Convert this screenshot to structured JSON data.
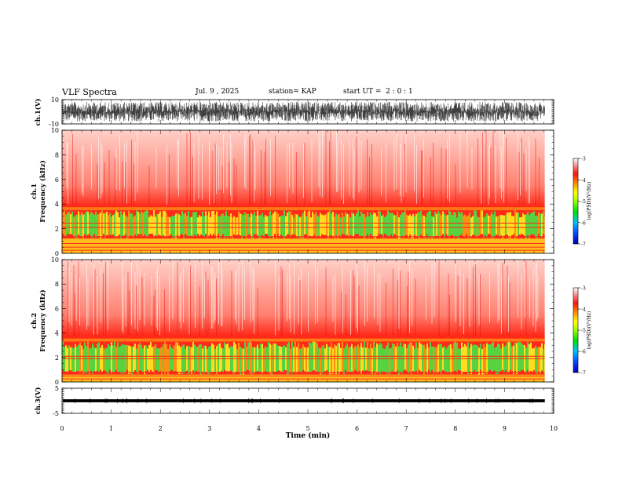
{
  "header": {
    "title": "VLF Spectra",
    "date": "Jul. 9 , 2025",
    "station": "station= KAP",
    "start_ut": "start UT =  2 : 0 : 1"
  },
  "colors": {
    "spec_red": "#ff2a1a",
    "spec_orange": "#ff9a14",
    "spec_yellow": "#ffee22",
    "spec_green": "#44e644",
    "colorbar_stops": [
      "#0000b0",
      "#0044ff",
      "#00c0ff",
      "#00e000",
      "#9aff00",
      "#ffff00",
      "#ff8000",
      "#ff1010",
      "#ffffff"
    ]
  },
  "chart_data": [
    {
      "type": "line",
      "panel": "ch1-waveform",
      "ylabel": "ch.1(V)",
      "ylim": [
        -10,
        10
      ],
      "yticks": [
        "10",
        "-10"
      ],
      "xlim": [
        0,
        10
      ],
      "description_values": {
        "typical_range": [
          -8,
          8
        ]
      }
    },
    {
      "type": "heatmap",
      "panel": "ch1-spectrogram",
      "ylabel": "ch.1\nFrequency (kHz)",
      "ylabel_lines": [
        "ch.1",
        "Frequency (kHz)"
      ],
      "ylim": [
        0,
        10
      ],
      "yticks": [
        "0",
        "2",
        "4",
        "6",
        "8",
        "10"
      ],
      "xlim": [
        0,
        10
      ],
      "data_end_min": 9.82,
      "colorbar": {
        "label": "log(PSD)(V²/Hz)",
        "range": [
          -7,
          -3
        ],
        "ticks": [
          "-3",
          "-4",
          "-5",
          "-6",
          "-7"
        ]
      },
      "bands_khz": {
        "red_top": 3.9,
        "green_band": [
          1.2,
          3.5
        ],
        "hum_lines_khz": [
          0.25,
          0.5,
          0.8,
          1.35,
          2.1,
          2.45
        ]
      }
    },
    {
      "type": "heatmap",
      "panel": "ch2-spectrogram",
      "ylabel": "ch.2\nFrequency (kHz)",
      "ylabel_lines": [
        "ch.2",
        "Frequency (kHz)"
      ],
      "ylim": [
        0,
        10
      ],
      "yticks": [
        "0",
        "2",
        "4",
        "6",
        "8",
        "10"
      ],
      "xlim": [
        0,
        10
      ],
      "data_end_min": 9.82,
      "colorbar": {
        "label": "log(PSD)(V²/Hz)",
        "range": [
          -7,
          -3
        ],
        "ticks": [
          "-3",
          "-4",
          "-5",
          "-6",
          "-7"
        ]
      },
      "bands_khz": {
        "red_top": 3.8,
        "green_band": [
          0.6,
          3.3
        ],
        "hum_lines_khz": [
          0.25,
          0.5,
          0.8,
          1.9,
          2.1
        ]
      }
    },
    {
      "type": "line",
      "panel": "ch3-waveform",
      "ylabel": "ch.3(V)",
      "ylim": [
        -5,
        5
      ],
      "yticks": [
        "5",
        "-5"
      ],
      "xlim": [
        0,
        10
      ],
      "description_values": {
        "band": [
          -0.6,
          0.6
        ]
      }
    }
  ],
  "xaxis": {
    "label": "Time (min)",
    "ticks": [
      "0",
      "1",
      "2",
      "3",
      "4",
      "5",
      "6",
      "7",
      "8",
      "9",
      "10"
    ]
  }
}
